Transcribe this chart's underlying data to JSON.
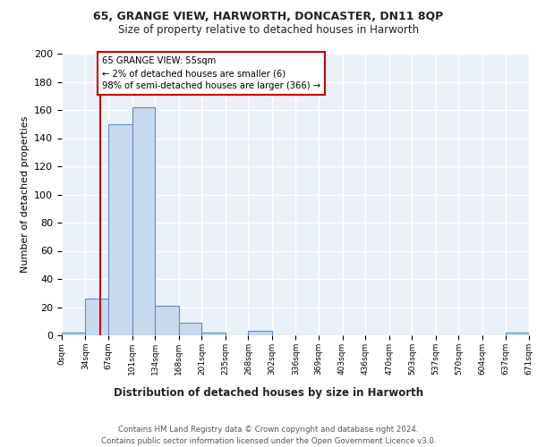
{
  "title1": "65, GRANGE VIEW, HARWORTH, DONCASTER, DN11 8QP",
  "title2": "Size of property relative to detached houses in Harworth",
  "xlabel": "Distribution of detached houses by size in Harworth",
  "ylabel": "Number of detached properties",
  "bin_edges": [
    0,
    34,
    67,
    101,
    134,
    168,
    201,
    235,
    268,
    302,
    336,
    369,
    403,
    436,
    470,
    503,
    537,
    570,
    604,
    637,
    671
  ],
  "bar_heights": [
    2,
    26,
    150,
    162,
    21,
    9,
    2,
    0,
    3,
    0,
    0,
    0,
    0,
    0,
    0,
    0,
    0,
    0,
    0,
    2
  ],
  "bar_color": "#c9d9ed",
  "bar_edge_color": "#5b8fc9",
  "property_size": 55,
  "property_line_color": "#cc0000",
  "annotation_text": "65 GRANGE VIEW: 55sqm\n← 2% of detached houses are smaller (6)\n98% of semi-detached houses are larger (366) →",
  "annotation_box_color": "#ffffff",
  "annotation_box_edge": "#cc0000",
  "ylim": [
    0,
    200
  ],
  "yticks": [
    0,
    20,
    40,
    60,
    80,
    100,
    120,
    140,
    160,
    180,
    200
  ],
  "footer1": "Contains HM Land Registry data © Crown copyright and database right 2024.",
  "footer2": "Contains public sector information licensed under the Open Government Licence v3.0.",
  "bg_color": "#eaf0f8",
  "grid_color": "#ffffff",
  "title_fontsize": 9,
  "subtitle_fontsize": 8.5
}
